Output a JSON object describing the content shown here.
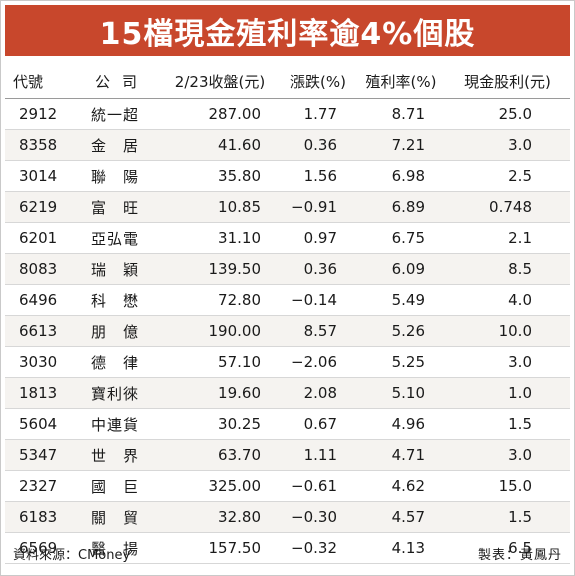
{
  "title": "15檔現金殖利率逾4%個股",
  "headers": {
    "code": "代號",
    "name": "公司",
    "close": "2/23收盤(元)",
    "change": "漲跌(%)",
    "yield": "殖利率(%)",
    "dividend": "現金股利(元)"
  },
  "rows": [
    {
      "code": "2912",
      "name": "統一超",
      "close": "287.00",
      "change": "1.77",
      "yield": "8.71",
      "dividend": "25.0"
    },
    {
      "code": "8358",
      "name": "金　居",
      "close": "41.60",
      "change": "0.36",
      "yield": "7.21",
      "dividend": "3.0"
    },
    {
      "code": "3014",
      "name": "聯　陽",
      "close": "35.80",
      "change": "1.56",
      "yield": "6.98",
      "dividend": "2.5"
    },
    {
      "code": "6219",
      "name": "富　旺",
      "close": "10.85",
      "change": "−0.91",
      "yield": "6.89",
      "dividend": "0.748"
    },
    {
      "code": "6201",
      "name": "亞弘電",
      "close": "31.10",
      "change": "0.97",
      "yield": "6.75",
      "dividend": "2.1"
    },
    {
      "code": "8083",
      "name": "瑞　穎",
      "close": "139.50",
      "change": "0.36",
      "yield": "6.09",
      "dividend": "8.5"
    },
    {
      "code": "6496",
      "name": "科　懋",
      "close": "72.80",
      "change": "−0.14",
      "yield": "5.49",
      "dividend": "4.0"
    },
    {
      "code": "6613",
      "name": "朋　億",
      "close": "190.00",
      "change": "8.57",
      "yield": "5.26",
      "dividend": "10.0"
    },
    {
      "code": "3030",
      "name": "德　律",
      "close": "57.10",
      "change": "−2.06",
      "yield": "5.25",
      "dividend": "3.0"
    },
    {
      "code": "1813",
      "name": "寶利徠",
      "close": "19.60",
      "change": "2.08",
      "yield": "5.10",
      "dividend": "1.0"
    },
    {
      "code": "5604",
      "name": "中連貨",
      "close": "30.25",
      "change": "0.67",
      "yield": "4.96",
      "dividend": "1.5"
    },
    {
      "code": "5347",
      "name": "世　界",
      "close": "63.70",
      "change": "1.11",
      "yield": "4.71",
      "dividend": "3.0"
    },
    {
      "code": "2327",
      "name": "國　巨",
      "close": "325.00",
      "change": "−0.61",
      "yield": "4.62",
      "dividend": "15.0"
    },
    {
      "code": "6183",
      "name": "關　貿",
      "close": "32.80",
      "change": "−0.30",
      "yield": "4.57",
      "dividend": "1.5"
    },
    {
      "code": "6569",
      "name": "醫　揚",
      "close": "157.50",
      "change": "−0.32",
      "yield": "4.13",
      "dividend": "6.5"
    }
  ],
  "footer": {
    "source": "資料來源：CMoney",
    "maker": "製表：黃鳳丹"
  },
  "colors": {
    "title_bg": "#c8472c",
    "title_text": "#ffffff",
    "stripe": "#f5f3f0"
  }
}
